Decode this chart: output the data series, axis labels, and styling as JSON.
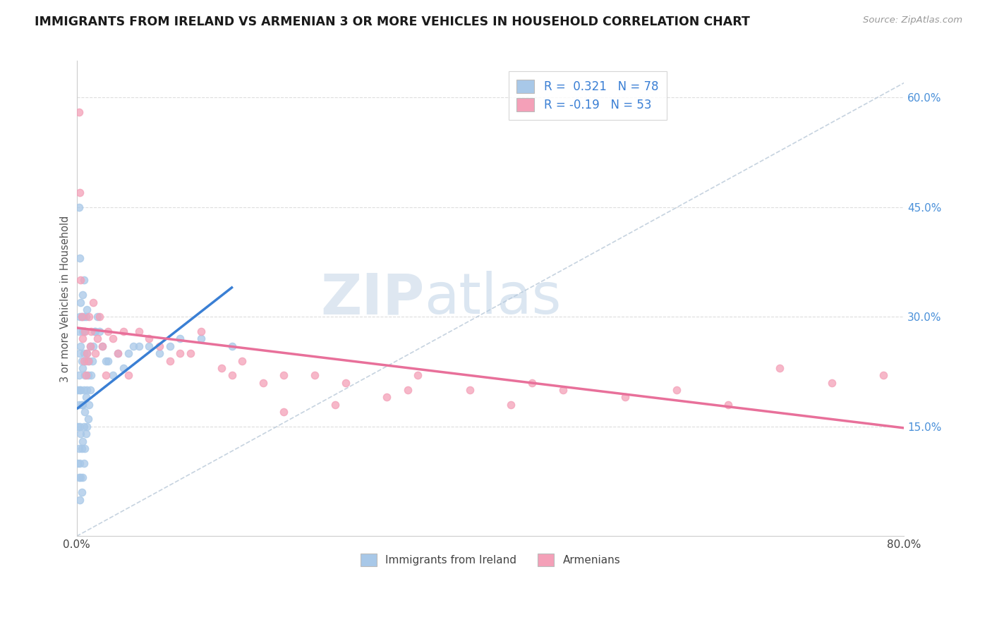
{
  "title": "IMMIGRANTS FROM IRELAND VS ARMENIAN 3 OR MORE VEHICLES IN HOUSEHOLD CORRELATION CHART",
  "source_text": "Source: ZipAtlas.com",
  "ylabel": "3 or more Vehicles in Household",
  "xlim": [
    0.0,
    0.8
  ],
  "ylim": [
    0.0,
    0.65
  ],
  "xticks": [
    0.0,
    0.1,
    0.2,
    0.3,
    0.4,
    0.5,
    0.6,
    0.7,
    0.8
  ],
  "yticks_right": [
    0.15,
    0.3,
    0.45,
    0.6
  ],
  "ytick_right_labels": [
    "15.0%",
    "30.0%",
    "45.0%",
    "60.0%"
  ],
  "ireland_R": 0.321,
  "ireland_N": 78,
  "armenian_R": -0.19,
  "armenian_N": 53,
  "color_ireland": "#a8c8e8",
  "color_armenian": "#f4a0b8",
  "color_ireland_line": "#3a7fd4",
  "color_armenian_line": "#e8709a",
  "color_ref_line": "#b8c8d8",
  "legend_label_ireland": "Immigrants from Ireland",
  "legend_label_armenian": "Armenians",
  "ireland_x": [
    0.001,
    0.001,
    0.001,
    0.002,
    0.002,
    0.002,
    0.002,
    0.002,
    0.003,
    0.003,
    0.003,
    0.003,
    0.003,
    0.003,
    0.004,
    0.004,
    0.004,
    0.004,
    0.004,
    0.005,
    0.005,
    0.005,
    0.005,
    0.005,
    0.006,
    0.006,
    0.006,
    0.006,
    0.006,
    0.006,
    0.007,
    0.007,
    0.007,
    0.007,
    0.007,
    0.007,
    0.008,
    0.008,
    0.008,
    0.008,
    0.009,
    0.009,
    0.009,
    0.009,
    0.01,
    0.01,
    0.01,
    0.01,
    0.011,
    0.011,
    0.012,
    0.012,
    0.013,
    0.013,
    0.014,
    0.015,
    0.016,
    0.017,
    0.018,
    0.02,
    0.022,
    0.025,
    0.028,
    0.03,
    0.035,
    0.04,
    0.045,
    0.05,
    0.055,
    0.06,
    0.07,
    0.08,
    0.09,
    0.1,
    0.12,
    0.15,
    0.002,
    0.003
  ],
  "ireland_y": [
    0.1,
    0.15,
    0.2,
    0.08,
    0.12,
    0.18,
    0.22,
    0.28,
    0.05,
    0.1,
    0.15,
    0.2,
    0.25,
    0.3,
    0.08,
    0.14,
    0.2,
    0.26,
    0.32,
    0.06,
    0.12,
    0.18,
    0.24,
    0.3,
    0.08,
    0.13,
    0.18,
    0.23,
    0.28,
    0.33,
    0.1,
    0.15,
    0.2,
    0.25,
    0.3,
    0.35,
    0.12,
    0.17,
    0.22,
    0.28,
    0.14,
    0.19,
    0.24,
    0.3,
    0.15,
    0.2,
    0.25,
    0.31,
    0.16,
    0.22,
    0.18,
    0.24,
    0.2,
    0.26,
    0.22,
    0.24,
    0.26,
    0.28,
    0.28,
    0.3,
    0.28,
    0.26,
    0.24,
    0.24,
    0.22,
    0.25,
    0.23,
    0.25,
    0.26,
    0.26,
    0.26,
    0.25,
    0.26,
    0.27,
    0.27,
    0.26,
    0.45,
    0.38
  ],
  "armenian_x": [
    0.002,
    0.003,
    0.004,
    0.005,
    0.006,
    0.007,
    0.008,
    0.009,
    0.01,
    0.011,
    0.012,
    0.013,
    0.014,
    0.016,
    0.018,
    0.02,
    0.022,
    0.025,
    0.028,
    0.03,
    0.035,
    0.04,
    0.045,
    0.05,
    0.06,
    0.07,
    0.08,
    0.09,
    0.1,
    0.11,
    0.12,
    0.14,
    0.16,
    0.18,
    0.2,
    0.23,
    0.26,
    0.3,
    0.33,
    0.38,
    0.42,
    0.47,
    0.53,
    0.58,
    0.63,
    0.68,
    0.73,
    0.78,
    0.32,
    0.44,
    0.15,
    0.25,
    0.2
  ],
  "armenian_y": [
    0.58,
    0.47,
    0.35,
    0.3,
    0.27,
    0.24,
    0.28,
    0.22,
    0.25,
    0.24,
    0.3,
    0.26,
    0.28,
    0.32,
    0.25,
    0.27,
    0.3,
    0.26,
    0.22,
    0.28,
    0.27,
    0.25,
    0.28,
    0.22,
    0.28,
    0.27,
    0.26,
    0.24,
    0.25,
    0.25,
    0.28,
    0.23,
    0.24,
    0.21,
    0.22,
    0.22,
    0.21,
    0.19,
    0.22,
    0.2,
    0.18,
    0.2,
    0.19,
    0.2,
    0.18,
    0.23,
    0.21,
    0.22,
    0.2,
    0.21,
    0.22,
    0.18,
    0.17
  ],
  "ireland_trend_x0": 0.001,
  "ireland_trend_x1": 0.15,
  "ireland_trend_y0": 0.175,
  "ireland_trend_y1": 0.34,
  "armenian_trend_x0": 0.0,
  "armenian_trend_x1": 0.8,
  "armenian_trend_y0": 0.285,
  "armenian_trend_y1": 0.148,
  "ref_line_x0": 0.0,
  "ref_line_x1": 0.8,
  "ref_line_y0": 0.0,
  "ref_line_y1": 0.62
}
